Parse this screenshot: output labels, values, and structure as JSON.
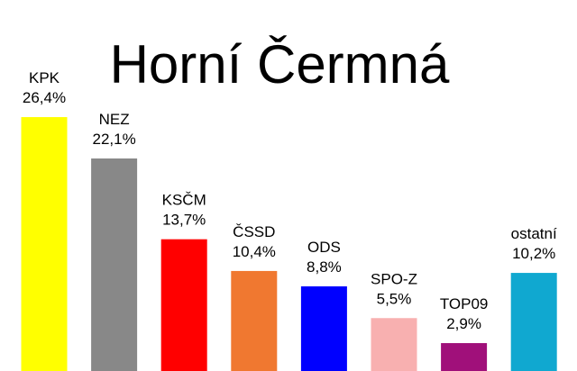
{
  "chart_data": {
    "type": "bar",
    "title": "Horní Čermná",
    "categories": [
      "KPK",
      "NEZ",
      "KSČM",
      "ČSSD",
      "ODS",
      "SPO-Z",
      "TOP09",
      "ostatní"
    ],
    "values": [
      26.4,
      22.1,
      13.7,
      10.4,
      8.8,
      5.5,
      2.9,
      10.2
    ],
    "value_labels": [
      "26,4%",
      "22,1%",
      "13,7%",
      "10,4%",
      "8,8%",
      "5,5%",
      "2,9%",
      "10,2%"
    ],
    "colors": [
      "#ffff00",
      "#888888",
      "#ff0000",
      "#f07830",
      "#0000ff",
      "#f8b0b0",
      "#a0107a",
      "#10a8d0"
    ]
  }
}
